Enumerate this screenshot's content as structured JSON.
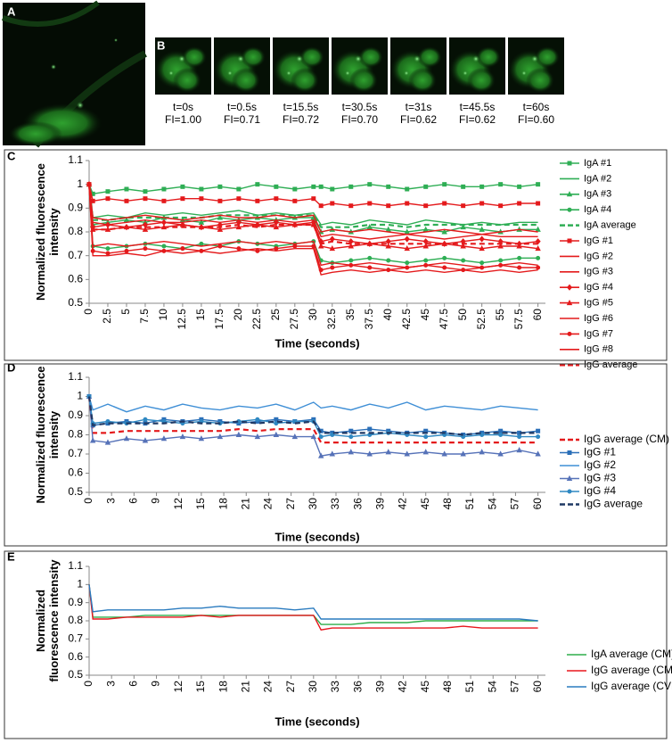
{
  "panel_labels": [
    "A",
    "B",
    "C",
    "D",
    "E"
  ],
  "frames": [
    {
      "time": "t=0s",
      "fi": "FI=1.00"
    },
    {
      "time": "t=0.5s",
      "fi": "FI=0.71"
    },
    {
      "time": "t=15.5s",
      "fi": "FI=0.72"
    },
    {
      "time": "t=30.5s",
      "fi": "FI=0.70"
    },
    {
      "time": "t=31s",
      "fi": "FI=0.62"
    },
    {
      "time": "t=45.5s",
      "fi": "FI=0.62"
    },
    {
      "time": "t=60s",
      "fi": "FI=0.60"
    }
  ],
  "chart_data": [
    {
      "type": "line",
      "xlabel": "Time (seconds)",
      "ylabel": "Normalized fluorescence intensity",
      "grid": false,
      "x": [
        0,
        0.5,
        2.5,
        5,
        7.5,
        10,
        12.5,
        15,
        17.5,
        20,
        22.5,
        25,
        27.5,
        30,
        31,
        32.5,
        35,
        37.5,
        40,
        42.5,
        45,
        47.5,
        50,
        52.5,
        55,
        57.5,
        60
      ],
      "xlim": [
        0,
        61
      ],
      "xticks": [
        0,
        2.5,
        5,
        7.5,
        10,
        12.5,
        15,
        17.5,
        20,
        22.5,
        25,
        27.5,
        30,
        32.5,
        35,
        37.5,
        40,
        42.5,
        45,
        47.5,
        50,
        52.5,
        55,
        57.5,
        60
      ],
      "ylim": [
        0.5,
        1.1
      ],
      "yticks": [
        0.5,
        0.6,
        0.7,
        0.8,
        0.9,
        1,
        1.1
      ],
      "series": [
        {
          "name": "IgA #1",
          "color": "#2fae55",
          "marker": "square",
          "dash": false,
          "values": [
            1,
            0.96,
            0.97,
            0.98,
            0.97,
            0.98,
            0.99,
            0.98,
            0.99,
            0.98,
            1,
            0.99,
            0.98,
            0.99,
            0.99,
            0.98,
            0.99,
            1,
            0.99,
            0.98,
            0.99,
            1,
            0.99,
            0.99,
            1,
            0.99,
            1
          ]
        },
        {
          "name": "IgA #2",
          "color": "#2fae55",
          "marker": "none",
          "dash": false,
          "values": [
            1,
            0.86,
            0.87,
            0.86,
            0.88,
            0.87,
            0.88,
            0.87,
            0.88,
            0.89,
            0.87,
            0.88,
            0.87,
            0.88,
            0.83,
            0.84,
            0.83,
            0.85,
            0.84,
            0.83,
            0.85,
            0.84,
            0.83,
            0.84,
            0.83,
            0.84,
            0.84
          ]
        },
        {
          "name": "IgA #3",
          "color": "#2fae55",
          "marker": "triangle",
          "dash": false,
          "values": [
            1,
            0.83,
            0.84,
            0.85,
            0.84,
            0.86,
            0.85,
            0.84,
            0.86,
            0.85,
            0.86,
            0.85,
            0.86,
            0.86,
            0.8,
            0.81,
            0.8,
            0.82,
            0.81,
            0.8,
            0.81,
            0.8,
            0.82,
            0.81,
            0.8,
            0.81,
            0.81
          ]
        },
        {
          "name": "IgA #4",
          "color": "#2fae55",
          "marker": "circle",
          "dash": false,
          "values": [
            1,
            0.74,
            0.73,
            0.74,
            0.75,
            0.74,
            0.73,
            0.75,
            0.74,
            0.76,
            0.75,
            0.74,
            0.75,
            0.76,
            0.68,
            0.67,
            0.68,
            0.69,
            0.68,
            0.67,
            0.68,
            0.69,
            0.68,
            0.67,
            0.68,
            0.69,
            0.69
          ]
        },
        {
          "name": "IgA average",
          "color": "#2fae55",
          "marker": "none",
          "dash": true,
          "values": [
            1,
            0.85,
            0.85,
            0.86,
            0.86,
            0.86,
            0.86,
            0.86,
            0.87,
            0.87,
            0.87,
            0.87,
            0.87,
            0.87,
            0.82,
            0.82,
            0.82,
            0.83,
            0.83,
            0.82,
            0.83,
            0.83,
            0.83,
            0.83,
            0.83,
            0.83,
            0.83
          ]
        },
        {
          "name": "IgG #1",
          "color": "#e41a1c",
          "marker": "square",
          "dash": false,
          "values": [
            1,
            0.93,
            0.94,
            0.93,
            0.94,
            0.93,
            0.94,
            0.94,
            0.93,
            0.94,
            0.93,
            0.94,
            0.93,
            0.94,
            0.91,
            0.92,
            0.91,
            0.92,
            0.91,
            0.92,
            0.91,
            0.92,
            0.91,
            0.92,
            0.91,
            0.92,
            0.92
          ]
        },
        {
          "name": "IgG #2",
          "color": "#e41a1c",
          "marker": "none",
          "dash": false,
          "values": [
            1,
            0.86,
            0.85,
            0.86,
            0.87,
            0.86,
            0.85,
            0.86,
            0.87,
            0.86,
            0.86,
            0.87,
            0.86,
            0.87,
            0.8,
            0.81,
            0.8,
            0.81,
            0.8,
            0.79,
            0.8,
            0.81,
            0.8,
            0.79,
            0.8,
            0.81,
            0.8
          ]
        },
        {
          "name": "IgG #3",
          "color": "#e41a1c",
          "marker": "none",
          "dash": false,
          "values": [
            1,
            0.84,
            0.83,
            0.84,
            0.85,
            0.84,
            0.84,
            0.85,
            0.84,
            0.85,
            0.84,
            0.85,
            0.84,
            0.85,
            0.78,
            0.79,
            0.78,
            0.77,
            0.78,
            0.79,
            0.78,
            0.77,
            0.78,
            0.79,
            0.78,
            0.78,
            0.78
          ]
        },
        {
          "name": "IgG #4",
          "color": "#e41a1c",
          "marker": "diamond",
          "dash": false,
          "values": [
            1,
            0.82,
            0.83,
            0.82,
            0.83,
            0.84,
            0.83,
            0.82,
            0.83,
            0.84,
            0.83,
            0.84,
            0.83,
            0.84,
            0.76,
            0.77,
            0.76,
            0.75,
            0.76,
            0.77,
            0.76,
            0.75,
            0.76,
            0.77,
            0.76,
            0.75,
            0.76
          ]
        },
        {
          "name": "IgG #5",
          "color": "#e41a1c",
          "marker": "triangle",
          "dash": false,
          "values": [
            1,
            0.81,
            0.81,
            0.82,
            0.81,
            0.82,
            0.83,
            0.82,
            0.81,
            0.82,
            0.83,
            0.82,
            0.83,
            0.83,
            0.74,
            0.73,
            0.74,
            0.75,
            0.74,
            0.73,
            0.74,
            0.75,
            0.74,
            0.73,
            0.74,
            0.74,
            0.73
          ]
        },
        {
          "name": "IgG #6",
          "color": "#e41a1c",
          "marker": "none",
          "dash": false,
          "values": [
            1,
            0.74,
            0.75,
            0.74,
            0.75,
            0.76,
            0.75,
            0.74,
            0.75,
            0.76,
            0.75,
            0.76,
            0.75,
            0.76,
            0.66,
            0.67,
            0.66,
            0.67,
            0.66,
            0.65,
            0.66,
            0.67,
            0.66,
            0.65,
            0.66,
            0.67,
            0.66
          ]
        },
        {
          "name": "IgG #7",
          "color": "#e41a1c",
          "marker": "circle",
          "dash": false,
          "values": [
            1,
            0.72,
            0.71,
            0.72,
            0.73,
            0.72,
            0.73,
            0.72,
            0.74,
            0.73,
            0.72,
            0.73,
            0.74,
            0.74,
            0.64,
            0.65,
            0.66,
            0.65,
            0.64,
            0.65,
            0.66,
            0.65,
            0.64,
            0.65,
            0.66,
            0.65,
            0.65
          ]
        },
        {
          "name": "IgG #8",
          "color": "#e41a1c",
          "marker": "none",
          "dash": false,
          "values": [
            1,
            0.7,
            0.7,
            0.71,
            0.7,
            0.72,
            0.71,
            0.72,
            0.71,
            0.72,
            0.73,
            0.72,
            0.73,
            0.73,
            0.62,
            0.63,
            0.64,
            0.63,
            0.64,
            0.63,
            0.64,
            0.63,
            0.64,
            0.63,
            0.64,
            0.63,
            0.64
          ]
        },
        {
          "name": "IgG average",
          "color": "#e41a1c",
          "marker": "none",
          "dash": true,
          "values": [
            1,
            0.81,
            0.81,
            0.82,
            0.82,
            0.82,
            0.82,
            0.82,
            0.82,
            0.83,
            0.82,
            0.83,
            0.83,
            0.83,
            0.75,
            0.76,
            0.75,
            0.75,
            0.75,
            0.75,
            0.75,
            0.75,
            0.75,
            0.75,
            0.75,
            0.75,
            0.75
          ]
        }
      ]
    },
    {
      "type": "line",
      "xlabel": "Time (seconds)",
      "ylabel": "Normalized fluorescence intensity",
      "grid": false,
      "x": [
        0,
        0.5,
        2.5,
        5,
        7.5,
        10,
        12.5,
        15,
        17.5,
        20,
        22.5,
        25,
        27.5,
        30,
        31,
        32.5,
        35,
        37.5,
        40,
        42.5,
        45,
        47.5,
        50,
        52.5,
        55,
        57.5,
        60
      ],
      "xlim": [
        0,
        61
      ],
      "xticks": [
        0,
        3,
        6,
        9,
        12,
        15,
        18,
        21,
        24,
        27,
        30,
        33,
        36,
        39,
        42,
        45,
        48,
        51,
        54,
        57,
        60
      ],
      "ylim": [
        0.5,
        1.1
      ],
      "yticks": [
        0.5,
        0.6,
        0.7,
        0.8,
        0.9,
        1,
        1.1
      ],
      "series": [
        {
          "name": "IgG average (CM)",
          "color": "#e41a1c",
          "marker": "none",
          "dash": true,
          "values": [
            1,
            0.81,
            0.81,
            0.82,
            0.82,
            0.82,
            0.82,
            0.82,
            0.82,
            0.83,
            0.82,
            0.83,
            0.83,
            0.83,
            0.76,
            0.76,
            0.76,
            0.76,
            0.76,
            0.76,
            0.76,
            0.76,
            0.76,
            0.76,
            0.76,
            0.76,
            0.76
          ]
        },
        {
          "name": "IgG #1",
          "color": "#2a6fb8",
          "marker": "square",
          "dash": false,
          "values": [
            1,
            0.85,
            0.86,
            0.87,
            0.86,
            0.88,
            0.87,
            0.88,
            0.87,
            0.86,
            0.87,
            0.88,
            0.87,
            0.88,
            0.82,
            0.81,
            0.82,
            0.83,
            0.82,
            0.81,
            0.82,
            0.81,
            0.8,
            0.81,
            0.82,
            0.81,
            0.82
          ]
        },
        {
          "name": "IgG #2",
          "color": "#3f8fd6",
          "marker": "none",
          "dash": false,
          "values": [
            1,
            0.93,
            0.96,
            0.92,
            0.95,
            0.93,
            0.96,
            0.94,
            0.93,
            0.95,
            0.94,
            0.96,
            0.93,
            0.97,
            0.94,
            0.95,
            0.93,
            0.96,
            0.94,
            0.97,
            0.93,
            0.95,
            0.94,
            0.93,
            0.95,
            0.94,
            0.93
          ]
        },
        {
          "name": "IgG #3",
          "color": "#5672b8",
          "marker": "triangle",
          "dash": false,
          "values": [
            1,
            0.77,
            0.76,
            0.78,
            0.77,
            0.78,
            0.79,
            0.78,
            0.79,
            0.8,
            0.79,
            0.8,
            0.79,
            0.79,
            0.69,
            0.7,
            0.71,
            0.7,
            0.71,
            0.7,
            0.71,
            0.7,
            0.7,
            0.71,
            0.7,
            0.72,
            0.7
          ]
        },
        {
          "name": "IgG #4",
          "color": "#2f88c2",
          "marker": "circle",
          "dash": false,
          "values": [
            1,
            0.86,
            0.87,
            0.86,
            0.88,
            0.87,
            0.86,
            0.87,
            0.86,
            0.87,
            0.88,
            0.86,
            0.87,
            0.87,
            0.79,
            0.8,
            0.79,
            0.8,
            0.81,
            0.8,
            0.79,
            0.8,
            0.79,
            0.8,
            0.8,
            0.79,
            0.79
          ]
        },
        {
          "name": "IgG average",
          "color": "#1f3864",
          "marker": "none",
          "dash": true,
          "values": [
            1,
            0.85,
            0.86,
            0.86,
            0.86,
            0.86,
            0.87,
            0.86,
            0.86,
            0.87,
            0.86,
            0.87,
            0.86,
            0.87,
            0.81,
            0.81,
            0.81,
            0.81,
            0.81,
            0.81,
            0.81,
            0.81,
            0.8,
            0.81,
            0.81,
            0.81,
            0.81
          ]
        }
      ]
    },
    {
      "type": "line",
      "xlabel": "Time (seconds)",
      "ylabel": "Normalized fluorescence intensity",
      "grid": false,
      "x": [
        0,
        0.5,
        2.5,
        5,
        7.5,
        10,
        12.5,
        15,
        17.5,
        20,
        22.5,
        25,
        27.5,
        30,
        31,
        32.5,
        35,
        37.5,
        40,
        42.5,
        45,
        47.5,
        50,
        52.5,
        55,
        57.5,
        60
      ],
      "xlim": [
        0,
        61
      ],
      "xticks": [
        0,
        3,
        6,
        9,
        12,
        15,
        18,
        21,
        24,
        27,
        30,
        33,
        36,
        39,
        42,
        45,
        48,
        51,
        54,
        57,
        60
      ],
      "ylim": [
        0.5,
        1.1
      ],
      "yticks": [
        0.5,
        0.6,
        0.7,
        0.8,
        0.9,
        1,
        1.1
      ],
      "series": [
        {
          "name": "IgA average (CM)",
          "color": "#2fae4a",
          "marker": "none",
          "dash": false,
          "values": [
            1,
            0.82,
            0.82,
            0.82,
            0.83,
            0.83,
            0.83,
            0.83,
            0.83,
            0.83,
            0.83,
            0.83,
            0.83,
            0.83,
            0.78,
            0.78,
            0.78,
            0.79,
            0.79,
            0.79,
            0.8,
            0.8,
            0.8,
            0.8,
            0.8,
            0.8,
            0.8
          ]
        },
        {
          "name": "IgG average (CM)",
          "color": "#e8161d",
          "marker": "none",
          "dash": false,
          "values": [
            1,
            0.81,
            0.81,
            0.82,
            0.82,
            0.82,
            0.82,
            0.83,
            0.82,
            0.83,
            0.83,
            0.83,
            0.83,
            0.83,
            0.75,
            0.76,
            0.76,
            0.76,
            0.76,
            0.76,
            0.76,
            0.76,
            0.77,
            0.76,
            0.76,
            0.76,
            0.76
          ]
        },
        {
          "name": "IgG average (CVM)",
          "color": "#2a7bbf",
          "marker": "none",
          "dash": false,
          "values": [
            1,
            0.85,
            0.86,
            0.86,
            0.86,
            0.86,
            0.87,
            0.87,
            0.88,
            0.87,
            0.87,
            0.87,
            0.86,
            0.87,
            0.81,
            0.81,
            0.81,
            0.81,
            0.81,
            0.81,
            0.81,
            0.81,
            0.81,
            0.81,
            0.81,
            0.81,
            0.8
          ]
        }
      ]
    }
  ]
}
